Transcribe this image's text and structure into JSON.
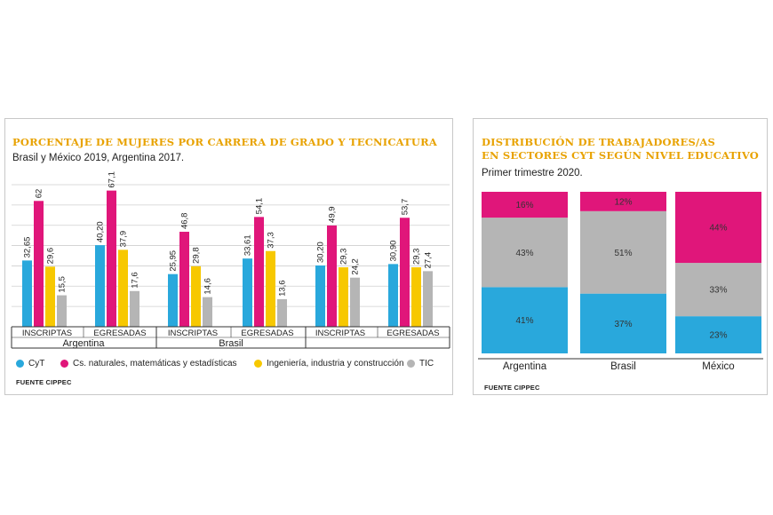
{
  "left_chart": {
    "title": "PORCENTAJE DE MUJERES POR CARRERA DE GRADO Y TECNICATURA",
    "subtitle": "Brasil y México 2019, Argentina 2017.",
    "source": "FUENTE CIPPEC",
    "legend": [
      {
        "label": "CyT",
        "color": "#29a8dc"
      },
      {
        "label": "Cs. naturales, matemáticas y estadísticas",
        "color": "#e0167a"
      },
      {
        "label": "Ingeniería, industria y construcción",
        "color": "#f7c800"
      },
      {
        "label": "TIC",
        "color": "#b5b5b5"
      }
    ]
  },
  "right_chart": {
    "title_line1": "DISTRIBUCIÓN DE TRABAJADORES/AS",
    "title_line2": "EN SECTORES CYT SEGÚN NIVEL EDUCATIVO",
    "subtitle": "Primer trimestre 2020.",
    "source": "FUENTE CIPPEC"
  },
  "chart_data": [
    {
      "type": "bar",
      "title": "PORCENTAJE DE MUJERES POR CARRERA DE GRADO Y TECNICATURA",
      "subtitle": "Brasil y México 2019, Argentina 2017.",
      "countries": [
        "Argentina",
        "Brasil",
        ""
      ],
      "categories": [
        "INSCRIPTAS",
        "EGRESADAS",
        "INSCRIPTAS",
        "EGRESADAS",
        "INSCRIPTAS",
        "EGRESADAS"
      ],
      "ylim": [
        0,
        70
      ],
      "grid": true,
      "series": [
        {
          "name": "CyT",
          "color": "#29a8dc",
          "values": [
            32.65,
            40.2,
            25.95,
            33.61,
            30.2,
            30.9
          ],
          "labels": [
            "32,65",
            "40,20",
            "25,95",
            "33,61",
            "30,20",
            "30,90"
          ]
        },
        {
          "name": "Cs. naturales, matemáticas y estadísticas",
          "color": "#e0167a",
          "values": [
            62,
            67.1,
            46.8,
            54.1,
            49.9,
            53.7
          ],
          "labels": [
            "62",
            "67,1",
            "46,8",
            "54,1",
            "49,9",
            "53,7"
          ]
        },
        {
          "name": "Ingeniería, industria y construcción",
          "color": "#f7c800",
          "values": [
            29.6,
            37.9,
            29.8,
            37.3,
            29.3,
            29.3
          ],
          "labels": [
            "29,6",
            "37,9",
            "29,8",
            "37,3",
            "29,3",
            "29,3"
          ]
        },
        {
          "name": "TIC",
          "color": "#b5b5b5",
          "values": [
            15.5,
            17.6,
            14.6,
            13.6,
            24.2,
            27.4
          ],
          "labels": [
            "15,5",
            "17,6",
            "14,6",
            "13,6",
            "24,2",
            "27,4"
          ]
        }
      ]
    },
    {
      "type": "bar",
      "stacked": true,
      "title": "DISTRIBUCIÓN DE TRABAJADORES/AS EN SECTORES CYT SEGÚN NIVEL EDUCATIVO",
      "subtitle": "Primer trimestre 2020.",
      "categories": [
        "Argentina",
        "Brasil",
        "México"
      ],
      "ylim": [
        0,
        100
      ],
      "series": [
        {
          "color": "#29a8dc",
          "values": [
            41,
            37,
            23
          ],
          "labels": [
            "41%",
            "37%",
            "23%"
          ]
        },
        {
          "color": "#b5b5b5",
          "values": [
            43,
            51,
            33
          ],
          "labels": [
            "43%",
            "51%",
            "33%"
          ]
        },
        {
          "color": "#e0167a",
          "values": [
            16,
            12,
            44
          ],
          "labels": [
            "16%",
            "12%",
            "44%"
          ]
        }
      ]
    }
  ]
}
